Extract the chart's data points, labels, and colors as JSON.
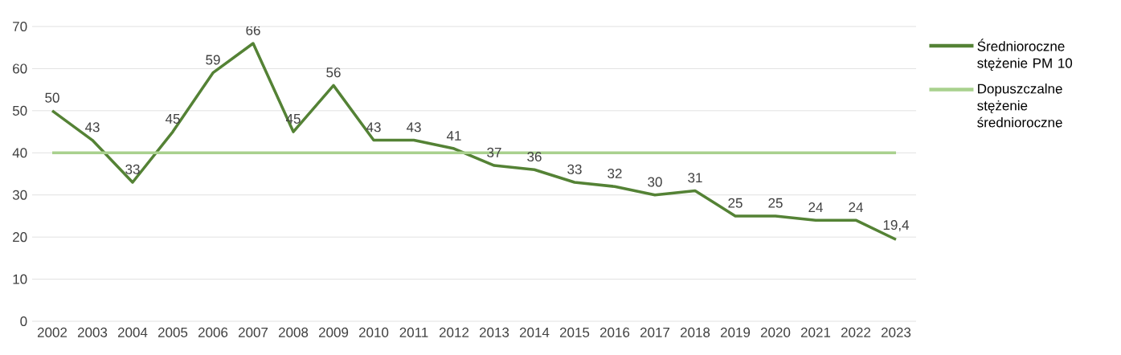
{
  "chart_data": {
    "type": "line",
    "categories": [
      "2002",
      "2003",
      "2004",
      "2005",
      "2006",
      "2007",
      "2008",
      "2009",
      "2010",
      "2011",
      "2012",
      "2013",
      "2014",
      "2015",
      "2016",
      "2017",
      "2018",
      "2019",
      "2020",
      "2021",
      "2022",
      "2023"
    ],
    "series": [
      {
        "name": "Średnioroczne stężenie PM 10",
        "color": "#548235",
        "values": [
          50,
          43,
          33,
          45,
          59,
          66,
          45,
          56,
          43,
          43,
          41,
          37,
          36,
          33,
          32,
          30,
          31,
          25,
          25,
          24,
          24,
          19.4
        ],
        "value_labels": [
          "50",
          "43",
          "33",
          "45",
          "59",
          "66",
          "45",
          "56",
          "43",
          "43",
          "41",
          "37",
          "36",
          "33",
          "32",
          "30",
          "31",
          "25",
          "25",
          "24",
          "24",
          "19,4"
        ]
      },
      {
        "name": "Dopuszczalne stężenie średnioroczne",
        "color": "#a9d18e",
        "values": [
          40,
          40,
          40,
          40,
          40,
          40,
          40,
          40,
          40,
          40,
          40,
          40,
          40,
          40,
          40,
          40,
          40,
          40,
          40,
          40,
          40,
          40
        ]
      }
    ],
    "ylim": [
      0,
      70
    ],
    "yticks": [
      0,
      10,
      20,
      30,
      40,
      50,
      60,
      70
    ],
    "grid": "y",
    "legend": "right"
  }
}
